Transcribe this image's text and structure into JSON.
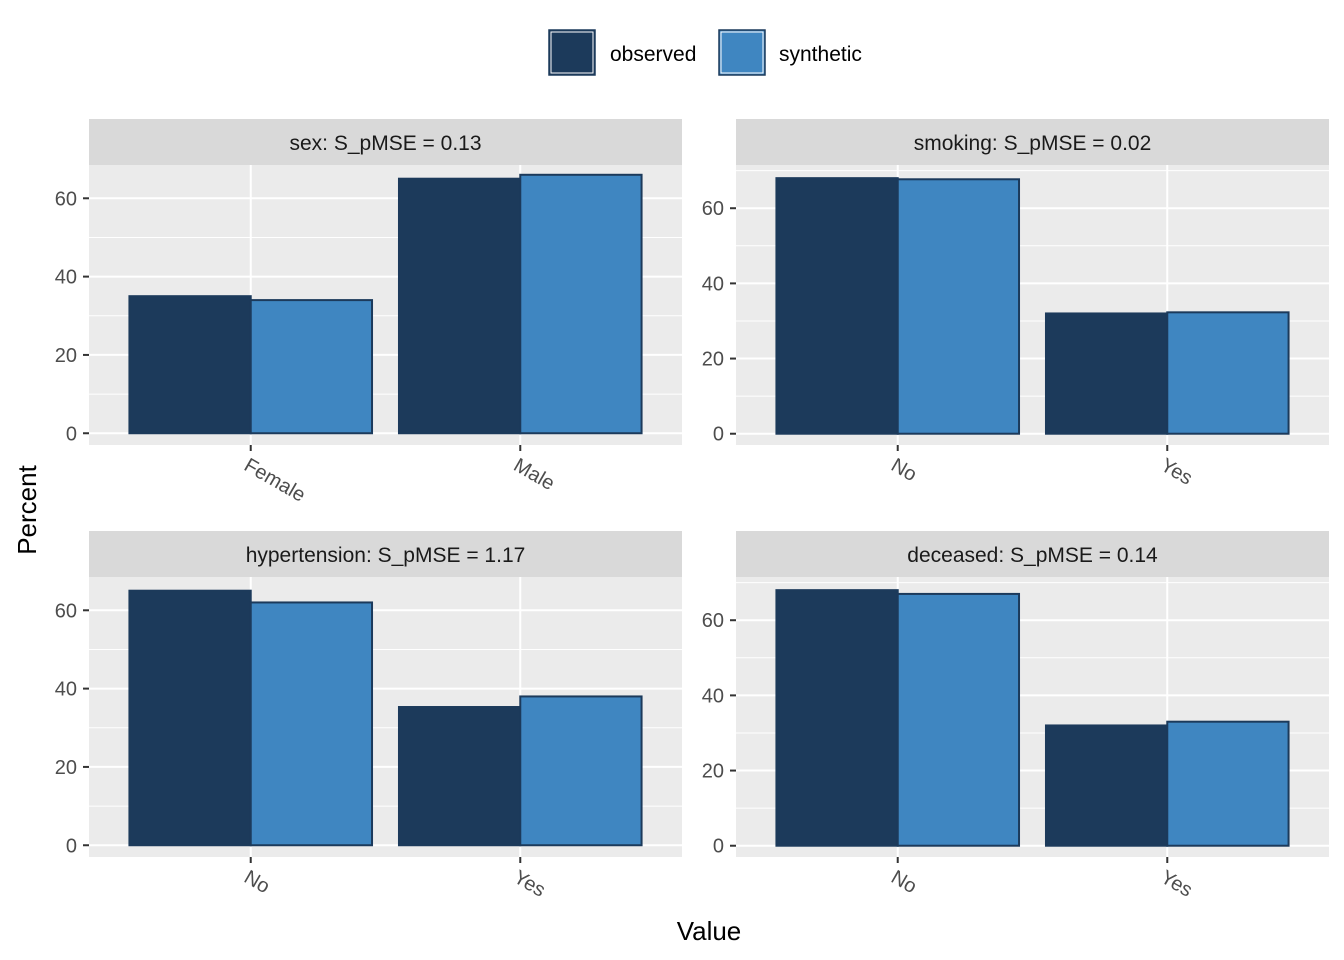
{
  "legend": {
    "items": [
      {
        "label": "observed",
        "color": "#1c3a5b"
      },
      {
        "label": "synthetic",
        "color": "#3f86c1"
      }
    ]
  },
  "axes": {
    "xlabel": "Value",
    "ylabel": "Percent"
  },
  "colors": {
    "panel_bg": "#ebebeb",
    "strip_bg": "#d9d9d9",
    "grid": "#ffffff",
    "bar_outline": "#1c3a5b",
    "tick_text": "#4d4d4d"
  },
  "chart_data": [
    {
      "type": "bar",
      "title": "sex: S_pMSE = 0.13",
      "categories": [
        "Female",
        "Male"
      ],
      "series": [
        {
          "name": "observed",
          "values": [
            35,
            65
          ]
        },
        {
          "name": "synthetic",
          "values": [
            34,
            66
          ]
        }
      ],
      "yticks": [
        0,
        20,
        40,
        60
      ],
      "ylim": [
        -3,
        68.5
      ],
      "grid": true
    },
    {
      "type": "bar",
      "title": "smoking: S_pMSE = 0.02",
      "categories": [
        "No",
        "Yes"
      ],
      "series": [
        {
          "name": "observed",
          "values": [
            68,
            32
          ]
        },
        {
          "name": "synthetic",
          "values": [
            67.7,
            32.3
          ]
        }
      ],
      "yticks": [
        0,
        20,
        40,
        60
      ],
      "ylim": [
        -3,
        71.5
      ],
      "grid": true
    },
    {
      "type": "bar",
      "title": "hypertension: S_pMSE = 1.17",
      "categories": [
        "No",
        "Yes"
      ],
      "series": [
        {
          "name": "observed",
          "values": [
            65,
            35.3
          ]
        },
        {
          "name": "synthetic",
          "values": [
            62,
            38
          ]
        }
      ],
      "yticks": [
        0,
        20,
        40,
        60
      ],
      "ylim": [
        -3,
        68.5
      ],
      "grid": true
    },
    {
      "type": "bar",
      "title": "deceased: S_pMSE = 0.14",
      "categories": [
        "No",
        "Yes"
      ],
      "series": [
        {
          "name": "observed",
          "values": [
            68,
            32
          ]
        },
        {
          "name": "synthetic",
          "values": [
            67,
            33
          ]
        }
      ],
      "yticks": [
        0,
        20,
        40,
        60
      ],
      "ylim": [
        -3,
        71.5
      ],
      "grid": true
    }
  ]
}
